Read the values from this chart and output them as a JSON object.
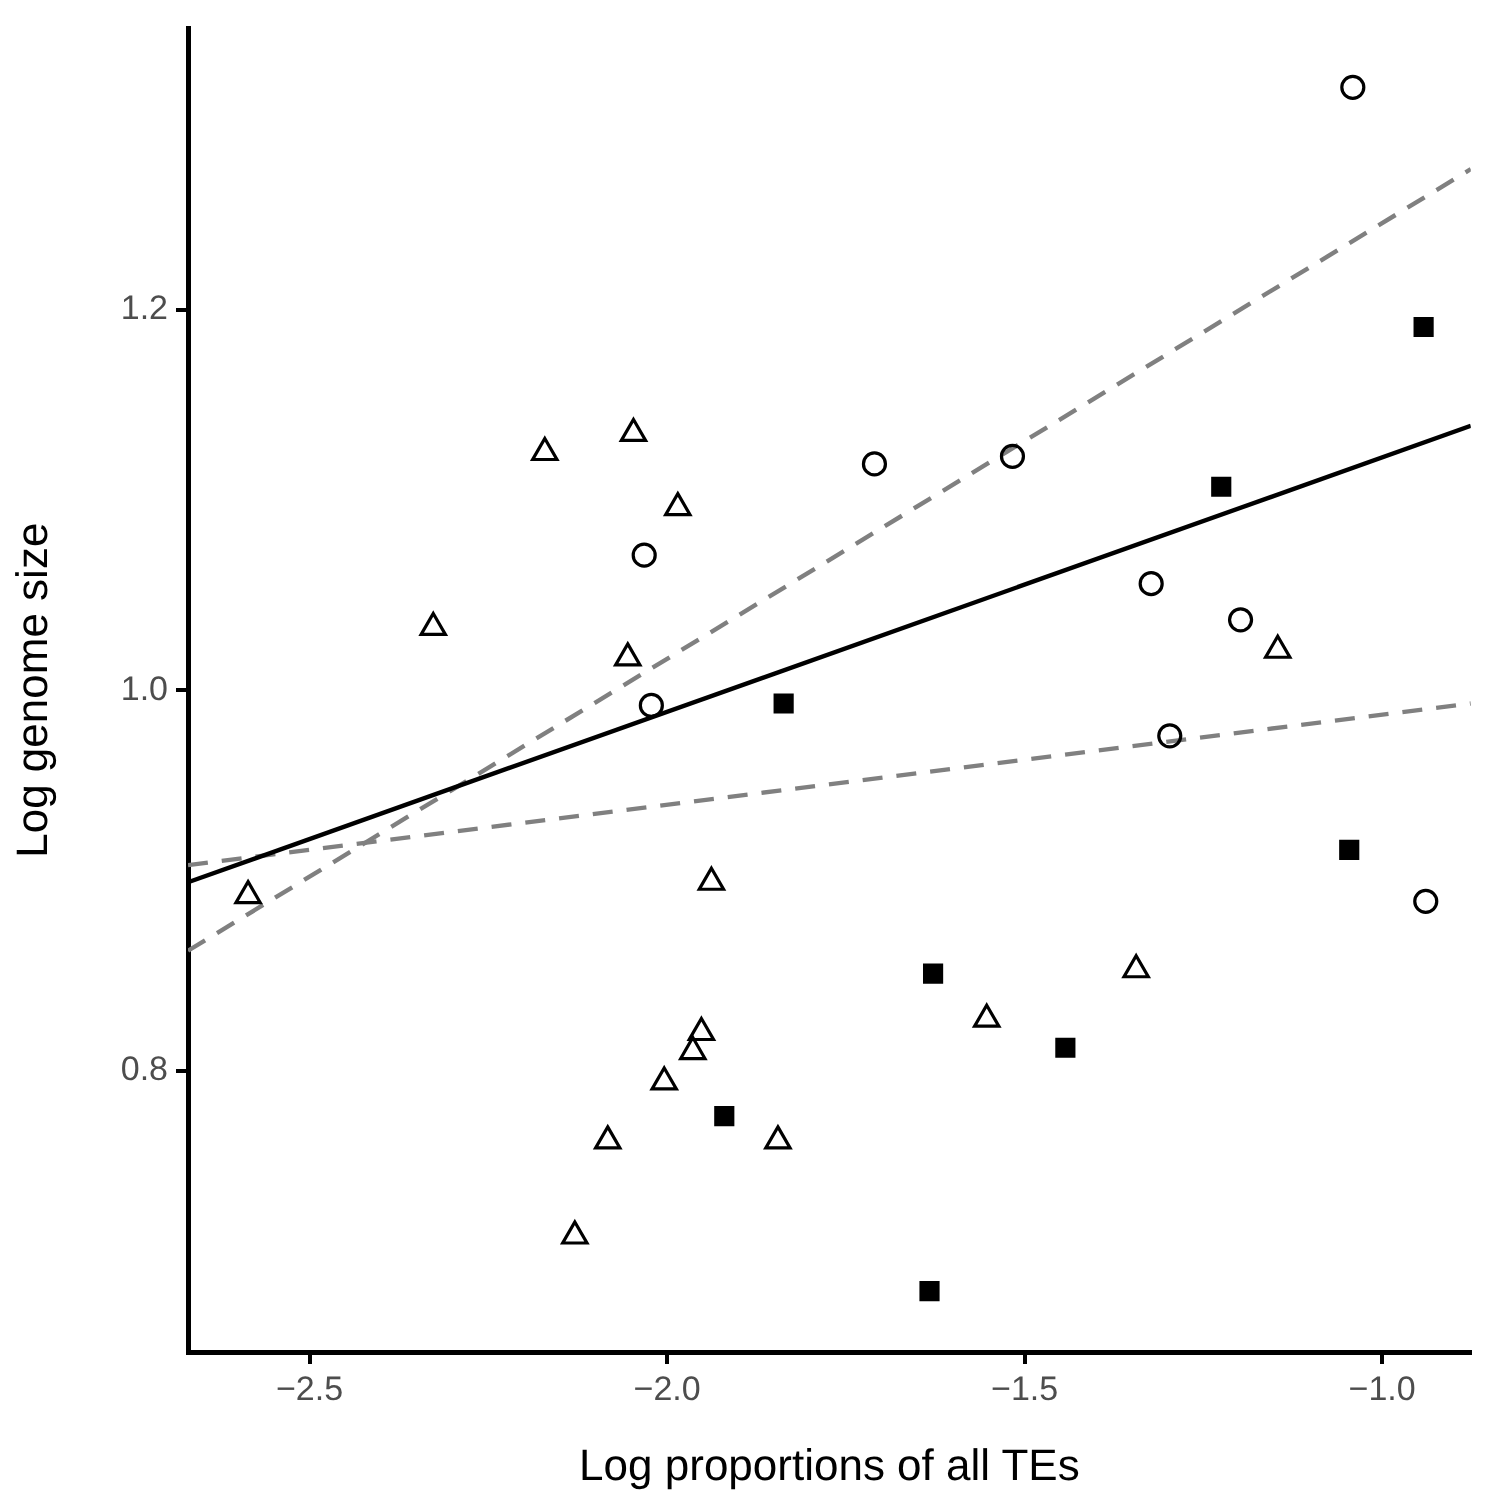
{
  "chart_data": {
    "type": "scatter",
    "xlabel": "Log proportions of all TEs",
    "ylabel": "Log genome size",
    "xlim": [
      -2.67,
      -0.876
    ],
    "ylim": [
      0.652,
      1.348
    ],
    "xticks": [
      {
        "value": -2.5,
        "label": "−2.5"
      },
      {
        "value": -2.0,
        "label": "−2.0"
      },
      {
        "value": -1.5,
        "label": "−1.5"
      },
      {
        "value": -1.0,
        "label": "−1.0"
      }
    ],
    "yticks": [
      {
        "value": 0.8,
        "label": "0.8"
      },
      {
        "value": 1.0,
        "label": "1.0"
      },
      {
        "value": 1.2,
        "label": "1.2"
      }
    ],
    "grid": false,
    "legend": false,
    "series": [
      {
        "color": "#000000",
        "marker": "circle",
        "x": [
          -1.041,
          -1.71,
          -1.517,
          -1.323,
          -1.198,
          -2.032,
          -2.022,
          -1.297,
          -0.939
        ],
        "values": [
          1.317,
          1.119,
          1.123,
          1.056,
          1.037,
          1.071,
          0.992,
          0.976,
          0.889
        ]
      },
      {
        "color": "#000000",
        "marker": "square",
        "x": [
          -0.942,
          -1.225,
          -1.837,
          -1.92,
          -1.046,
          -1.628,
          -1.443,
          -1.633
        ],
        "values": [
          1.191,
          1.107,
          0.993,
          0.776,
          0.916,
          0.851,
          0.812,
          0.684
        ]
      },
      {
        "color": "#000000",
        "marker": "triangle",
        "x": [
          -2.171,
          -2.047,
          -1.985,
          -2.327,
          -2.055,
          -1.146,
          -2.586,
          -1.938,
          -1.952,
          -1.964,
          -2.004,
          -2.083,
          -1.845,
          -2.129,
          -1.344,
          -1.553
        ],
        "values": [
          1.125,
          1.135,
          1.096,
          1.033,
          1.017,
          1.021,
          0.892,
          0.899,
          0.82,
          0.81,
          0.794,
          0.763,
          0.763,
          0.713,
          0.853,
          0.827
        ]
      },
      {
        "type": "line",
        "color": "#000000",
        "line_style": "solid",
        "x": [
          -2.67,
          -0.876
        ],
        "values": [
          0.899,
          1.139
        ]
      },
      {
        "type": "line",
        "color": "#808080",
        "line_style": "dashed",
        "x": [
          -2.67,
          -0.876
        ],
        "values": [
          0.863,
          1.274
        ]
      },
      {
        "type": "line",
        "color": "#808080",
        "line_style": "dashed",
        "x": [
          -2.67,
          -0.876
        ],
        "values": [
          0.908,
          0.993
        ]
      }
    ]
  }
}
